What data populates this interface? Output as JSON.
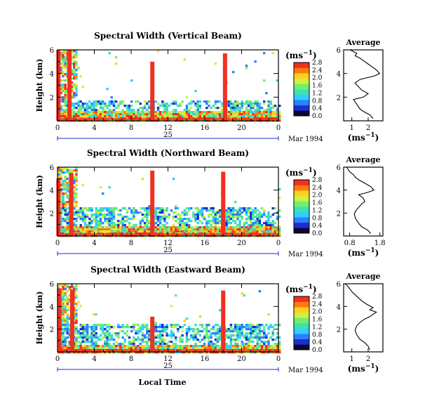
{
  "shared": {
    "x_ticks": [
      "0",
      "4",
      "8",
      "12",
      "16",
      "20",
      "0"
    ],
    "date_label": "Mar 1994",
    "day_label": "25",
    "y_ticks": [
      "2",
      "4",
      "6"
    ],
    "ylabel": "Height (km)",
    "xlabel": "Local Time",
    "cb_unit_prefix": "(ms",
    "cb_unit_exp": "−1",
    "cb_unit_suffix": ")",
    "cb_ticks": [
      "0.0",
      "0.4",
      "0.8",
      "1.2",
      "1.6",
      "2.0",
      "2.4",
      "2.8"
    ],
    "avg_title": "Average",
    "avg_unit_prefix": "(ms",
    "avg_unit_exp": "−1",
    "avg_unit_suffix": ")"
  },
  "colors": {
    "scale": [
      "#0a0a30",
      "#1a2fd0",
      "#2f7fff",
      "#2fd0ff",
      "#40e0b0",
      "#70f070",
      "#d0f040",
      "#ffd020",
      "#ff7a10",
      "#f03020"
    ]
  },
  "chart_data": [
    {
      "type": "heatmap",
      "title": "Spectral Width (Vertical Beam)",
      "xlabel": "",
      "ylabel": "Height (km)",
      "xlim": [
        0,
        24
      ],
      "ylim": [
        0,
        6
      ],
      "color_range": [
        0.0,
        2.8
      ],
      "features": {
        "base_top": 1.0,
        "mid_band": [
          1.0,
          1.9
        ],
        "spikes": [
          [
            0.1,
            6.0
          ],
          [
            1.3,
            6.0
          ],
          [
            10.3,
            5.0
          ],
          [
            18.2,
            5.7
          ]
        ],
        "block": [
          0,
          2.0,
          0,
          6.0
        ]
      },
      "profile": {
        "x": [
          2.3,
          2.1,
          1.7,
          1.5,
          1.3,
          1.1,
          1.7,
          2.0,
          1.6,
          1.4,
          1.2,
          1.5,
          2.4,
          2.7,
          2.5,
          2.2,
          1.9,
          1.7,
          1.5,
          1.2,
          1.3,
          1.1,
          0.9
        ],
        "y": [
          0.2,
          0.5,
          0.8,
          1.0,
          1.4,
          1.8,
          2.0,
          2.3,
          2.6,
          2.9,
          3.2,
          3.5,
          3.8,
          4.0,
          4.3,
          4.6,
          4.9,
          5.1,
          5.3,
          5.5,
          5.7,
          5.85,
          6.0
        ],
        "xlim": [
          0.5,
          2.9
        ],
        "xticks": [
          "1",
          "2"
        ],
        "ylim": [
          0,
          6
        ],
        "yticks": [
          "2",
          "4",
          "6"
        ]
      }
    },
    {
      "type": "heatmap",
      "title": "Spectral Width (Northward Beam)",
      "xlabel": "",
      "ylabel": "Height (km)",
      "xlim": [
        0,
        24
      ],
      "ylim": [
        0,
        6
      ],
      "color_range": [
        0.0,
        2.8
      ],
      "features": {
        "base_top": 0.9,
        "mid_band": [
          0.9,
          2.6
        ],
        "spikes": [
          [
            0.1,
            5.0
          ],
          [
            1.5,
            5.5
          ],
          [
            10.3,
            5.7
          ],
          [
            18.0,
            5.6
          ]
        ],
        "block": [
          0,
          2.1,
          0,
          6.0
        ]
      },
      "profile": {
        "x": [
          1.5,
          1.4,
          1.2,
          1.1,
          1.0,
          0.95,
          1.0,
          1.1,
          1.2,
          1.3,
          1.25,
          1.1,
          1.4,
          1.6,
          1.5,
          1.3,
          1.1,
          1.0,
          0.9,
          0.8,
          0.75,
          0.7
        ],
        "y": [
          0.2,
          0.5,
          0.8,
          1.1,
          1.5,
          1.9,
          2.2,
          2.5,
          2.8,
          3.0,
          3.3,
          3.6,
          3.8,
          4.0,
          4.3,
          4.6,
          4.9,
          5.1,
          5.4,
          5.6,
          5.8,
          6.0
        ],
        "xlim": [
          0.6,
          1.9
        ],
        "xticks": [
          "0.8",
          "1.8"
        ],
        "ylim": [
          0,
          6
        ],
        "yticks": [
          "2",
          "4",
          "6"
        ]
      }
    },
    {
      "type": "heatmap",
      "title": "Spectral Width (Eastward Beam)",
      "xlabel": "Local Time",
      "ylabel": "Height (km)",
      "xlim": [
        0,
        24
      ],
      "ylim": [
        0,
        6
      ],
      "color_range": [
        0.0,
        2.8
      ],
      "features": {
        "base_top": 0.8,
        "mid_band": [
          0.8,
          2.5
        ],
        "spikes": [
          [
            0.2,
            5.6
          ],
          [
            1.6,
            5.5
          ],
          [
            10.3,
            3.1
          ],
          [
            18.0,
            5.4
          ]
        ],
        "block": [
          0,
          2.0,
          0,
          6.0
        ]
      },
      "profile": {
        "x": [
          2.1,
          2.0,
          1.8,
          1.5,
          1.3,
          1.2,
          1.3,
          1.5,
          1.8,
          2.1,
          2.3,
          2.5,
          2.1,
          2.3,
          1.9,
          1.6,
          1.3,
          1.0,
          0.8,
          0.6
        ],
        "y": [
          0.2,
          0.5,
          0.8,
          1.1,
          1.5,
          1.9,
          2.3,
          2.6,
          2.9,
          3.1,
          3.3,
          3.5,
          3.7,
          3.9,
          4.2,
          4.5,
          4.9,
          5.3,
          5.7,
          6.0
        ],
        "xlim": [
          0.5,
          2.9
        ],
        "xticks": [
          "1",
          "2"
        ],
        "ylim": [
          0,
          6
        ],
        "yticks": [
          "2",
          "4",
          "6"
        ]
      }
    }
  ]
}
